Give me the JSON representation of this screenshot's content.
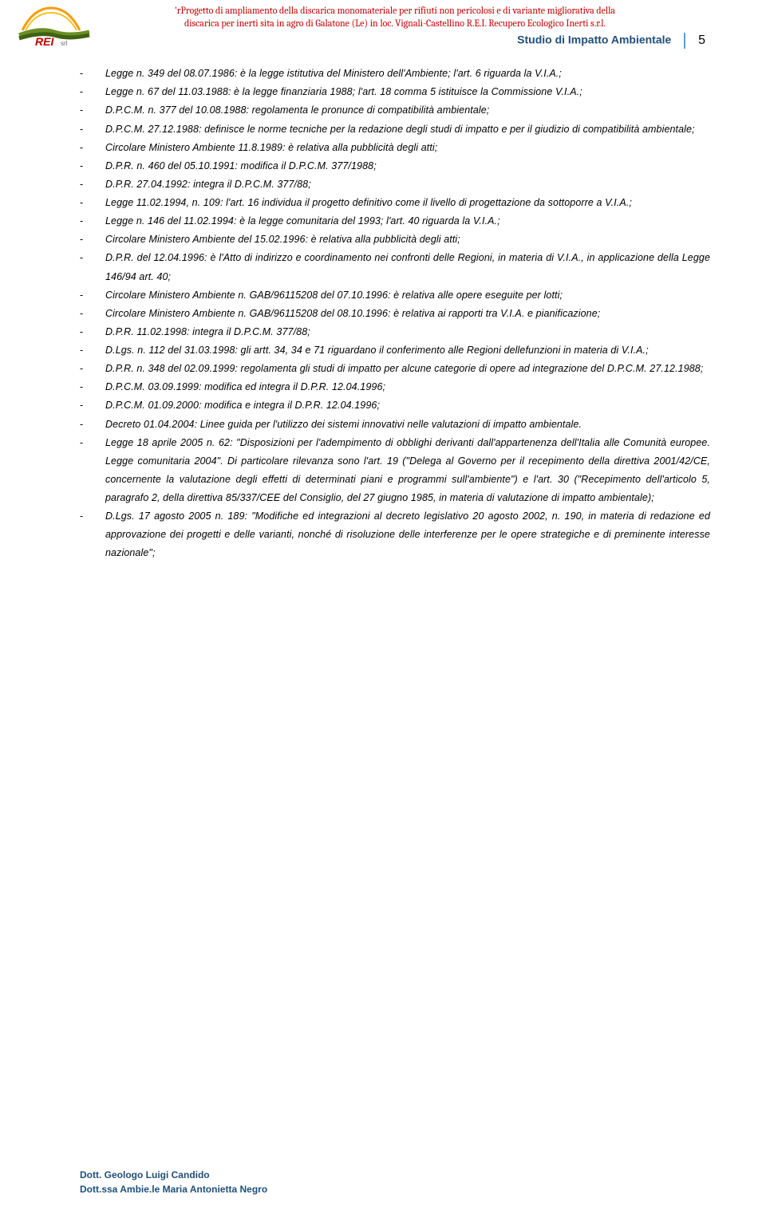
{
  "header": {
    "line1": "'rProgetto di ampliamento della discarica monomateriale per rifiuti non pericolosi e di variante migliorativa della",
    "line2": "discarica per inerti sita in agro di Galatone (Le) in loc. Vignali-Castellino   R.E.I.   Recupero Ecologico Inerti s.r.l.",
    "studio": "Studio di Impatto Ambientale",
    "pagenum": "5"
  },
  "logo": {
    "rei_text": "REI",
    "srl": "srl",
    "color_orange": "#f59e0b",
    "color_green1": "#6b8e23",
    "color_green2": "#3f6212"
  },
  "items": [
    "Legge n. 349 del 08.07.1986: è la legge istitutiva del Ministero dell'Ambiente; l'art. 6 riguarda la V.I.A.;",
    "Legge n. 67 del 11.03.1988: è la legge finanziaria 1988; l'art. 18 comma 5 istituisce la Commissione V.I.A.;",
    "D.P.C.M. n. 377 del 10.08.1988: regolamenta le pronunce di compatibilità ambientale;",
    "D.P.C.M. 27.12.1988: definisce le norme tecniche per la redazione degli studi di impatto e per il giudizio di compatibilità ambientale;",
    "Circolare Ministero Ambiente 11.8.1989: è relativa alla pubblicità degli atti;",
    "D.P.R. n. 460 del 05.10.1991: modifica il D.P.C.M. 377/1988;",
    "D.P.R. 27.04.1992: integra il D.P.C.M. 377/88;",
    "Legge 11.02.1994, n. 109: l'art. 16 individua il progetto definitivo come il livello di progettazione da sottoporre a V.I.A.;",
    "Legge n. 146 del 11.02.1994: è la legge comunitaria del 1993; l'art. 40 riguarda la V.I.A.;",
    "Circolare Ministero Ambiente del 15.02.1996: è relativa alla pubblicità degli atti;",
    "D.P.R. del 12.04.1996: è l'Atto di indirizzo e coordinamento nei confronti delle Regioni, in materia di V.I.A., in applicazione della Legge 146/94 art. 40;",
    "Circolare Ministero Ambiente n. GAB/96115208 del 07.10.1996: è relativa alle opere eseguite per lotti;",
    "Circolare Ministero Ambiente n. GAB/96115208 del 08.10.1996: è relativa ai rapporti tra V.I.A. e pianificazione;",
    "D.P.R. 11.02.1998: integra il D.P.C.M. 377/88;",
    "D.Lgs. n. 112 del 31.03.1998: gli artt. 34, 34 e 71 riguardano il conferimento alle Regioni dellefunzioni in materia di V.I.A.;",
    "D.P.R. n. 348 del 02.09.1999: regolamenta gli studi di impatto per alcune categorie di opere ad integrazione del D.P.C.M. 27.12.1988;",
    "D.P.C.M. 03.09.1999: modifica ed integra il D.P.R. 12.04.1996;",
    "D.P.C.M. 01.09.2000: modifica e integra il D.P.R. 12.04.1996;",
    "Decreto 01.04.2004: Linee guida per l'utilizzo dei sistemi innovativi nelle valutazioni di impatto ambientale.",
    "Legge 18 aprile 2005 n. 62: \"Disposizioni per l'adempimento di obblighi derivanti dall'appartenenza dell'Italia alle Comunità europee. Legge comunitaria 2004\". Di particolare rilevanza sono l'art. 19 (\"Delega al Governo per il recepimento della direttiva 2001/42/CE, concernente la valutazione degli effetti di determinati piani e programmi sull'ambiente\") e l'art. 30 (\"Recepimento dell'articolo 5, paragrafo 2, della direttiva 85/337/CEE del Consiglio, del 27 giugno 1985, in materia di valutazione di impatto ambientale);",
    "D.Lgs. 17 agosto 2005 n. 189: \"Modifiche ed integrazioni al decreto legislativo 20 agosto 2002, n. 190, in materia di redazione ed approvazione dei progetti e delle varianti, nonché di risoluzione delle interferenze per le opere strategiche e di preminente interesse nazionale\";"
  ],
  "footer": {
    "line1": "Dott. Geologo Luigi Candido",
    "line2": "Dott.ssa Ambie.le Maria Antonietta Negro"
  }
}
